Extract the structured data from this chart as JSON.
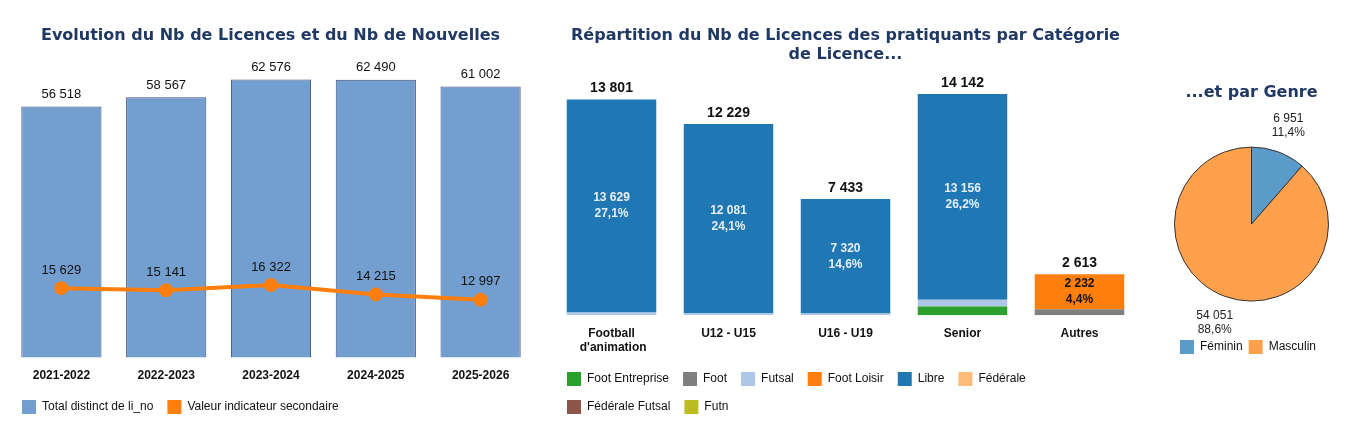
{
  "chart_data": [
    {
      "type": "bar",
      "title": "Evolution du Nb de Licences et du Nb de Nouvelles",
      "categories": [
        "2021-2022",
        "2022-2023",
        "2023-2024",
        "2024-2025",
        "2025-2026"
      ],
      "legend": "bottom",
      "marker": "circle",
      "series": [
        {
          "name": "Total distinct de li_no",
          "color": "#729fcf",
          "values": [
            56518,
            58567,
            62576,
            62490,
            61002
          ],
          "value_labels": [
            "56 518",
            "58 567",
            "62 576",
            "62 490",
            "61 002"
          ]
        },
        {
          "name": "Valeur indicateur secondaire",
          "type": "line",
          "color": "#ff7f0e",
          "values": [
            15629,
            15141,
            16322,
            14215,
            12997
          ],
          "value_labels": [
            "15 629",
            "15 141",
            "16 322",
            "14 215",
            "12 997"
          ]
        }
      ]
    },
    {
      "type": "bar",
      "stacked": true,
      "title": "Répartition du Nb de Licences des pratiquants par Catégorie de Licence...",
      "categories": [
        "Football d'animation",
        "U12 - U15",
        "U16 - U19",
        "Senior",
        "Autres"
      ],
      "legend": "bottom",
      "totals": [
        "13 801",
        "12 229",
        "7 433",
        "14 142",
        "2 613"
      ],
      "series": [
        {
          "name": "Foot Entreprise",
          "color": "#2ca02c",
          "values": [
            null,
            null,
            null,
            556,
            null
          ]
        },
        {
          "name": "Foot",
          "color": "#7f7f7f",
          "values": [
            null,
            null,
            null,
            null,
            381
          ]
        },
        {
          "name": "Futsal",
          "color": "#aec7e8",
          "values": [
            172,
            148,
            113,
            430,
            null
          ]
        },
        {
          "name": "Foot Loisir",
          "color": "#ff7f0e",
          "values": [
            null,
            null,
            null,
            null,
            2232
          ],
          "value_labels": [
            null,
            null,
            null,
            null,
            "2 232\n4,4%"
          ]
        },
        {
          "name": "Libre",
          "color": "#1f77b4",
          "values": [
            13629,
            12081,
            7320,
            13156,
            null
          ],
          "value_labels": [
            "13 629\n27,1%",
            "12 081\n24,1%",
            "7 320\n14,6%",
            "13 156\n26,2%",
            null
          ]
        },
        {
          "name": "Fédérale",
          "color": "#ffbb78",
          "values": [
            null,
            null,
            null,
            null,
            null
          ]
        },
        {
          "name": "Fédérale Futsal",
          "color": "#8c564b",
          "values": [
            null,
            null,
            null,
            null,
            null
          ]
        },
        {
          "name": "Futn",
          "color": "#bcbd22",
          "values": [
            null,
            null,
            null,
            null,
            null
          ]
        }
      ]
    },
    {
      "type": "pie",
      "title": "...et par Genre",
      "categories": [
        "Féminin",
        "Masculin"
      ],
      "values": [
        6951,
        54051
      ],
      "colors": [
        "#5a9bc9",
        "#ffa04d"
      ],
      "value_labels": [
        "6 951\n11,4%",
        "54 051\n88,6%"
      ],
      "legend": "bottom"
    }
  ]
}
